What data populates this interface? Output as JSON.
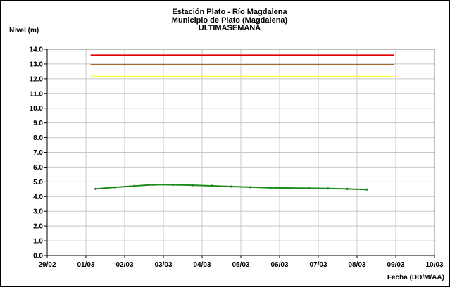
{
  "chart_data": {
    "type": "line",
    "title": "Estación Plato - Río Magdalena",
    "subtitle": "Municipio de Plato (Magdalena)",
    "subtitle2": "ULTIMASEMANA",
    "ylabel": "Nivel (m)",
    "xlabel": "Fecha (DD/M/AA)",
    "ylim": [
      0,
      14
    ],
    "y_ticks": [
      "0.0",
      "1.0",
      "2.0",
      "3.0",
      "4.0",
      "5.0",
      "6.0",
      "7.0",
      "8.0",
      "9.0",
      "10.0",
      "11.0",
      "12.0",
      "13.0",
      "14.0"
    ],
    "x_range_days": [
      0,
      10
    ],
    "x_tick_days": [
      0,
      1,
      2,
      3,
      4,
      5,
      6,
      7,
      8,
      9,
      10
    ],
    "x_tick_labels": [
      "29/02",
      "01/03",
      "02/03",
      "03/03",
      "04/03",
      "05/03",
      "06/03",
      "07/03",
      "08/03",
      "09/03",
      "10/03"
    ],
    "grid": true,
    "thresholds": [
      {
        "level": 13.6,
        "color": "#e60000",
        "x_start_day": 1.12,
        "x_end_day": 8.95
      },
      {
        "level": 12.95,
        "color": "#a0672a",
        "x_start_day": 1.12,
        "x_end_day": 8.95
      },
      {
        "level": 12.15,
        "color": "#ffff33",
        "x_start_day": 1.12,
        "x_end_day": 8.95
      }
    ],
    "series": [
      {
        "color": "#1a8a1a",
        "x_days": [
          1.25,
          1.75,
          2.25,
          2.75,
          3.25,
          3.75,
          4.25,
          4.75,
          5.25,
          5.75,
          6.25,
          6.75,
          7.25,
          7.75,
          8.25
        ],
        "values": [
          4.52,
          4.63,
          4.72,
          4.8,
          4.8,
          4.77,
          4.73,
          4.68,
          4.64,
          4.6,
          4.58,
          4.57,
          4.55,
          4.52,
          4.48
        ]
      }
    ]
  }
}
